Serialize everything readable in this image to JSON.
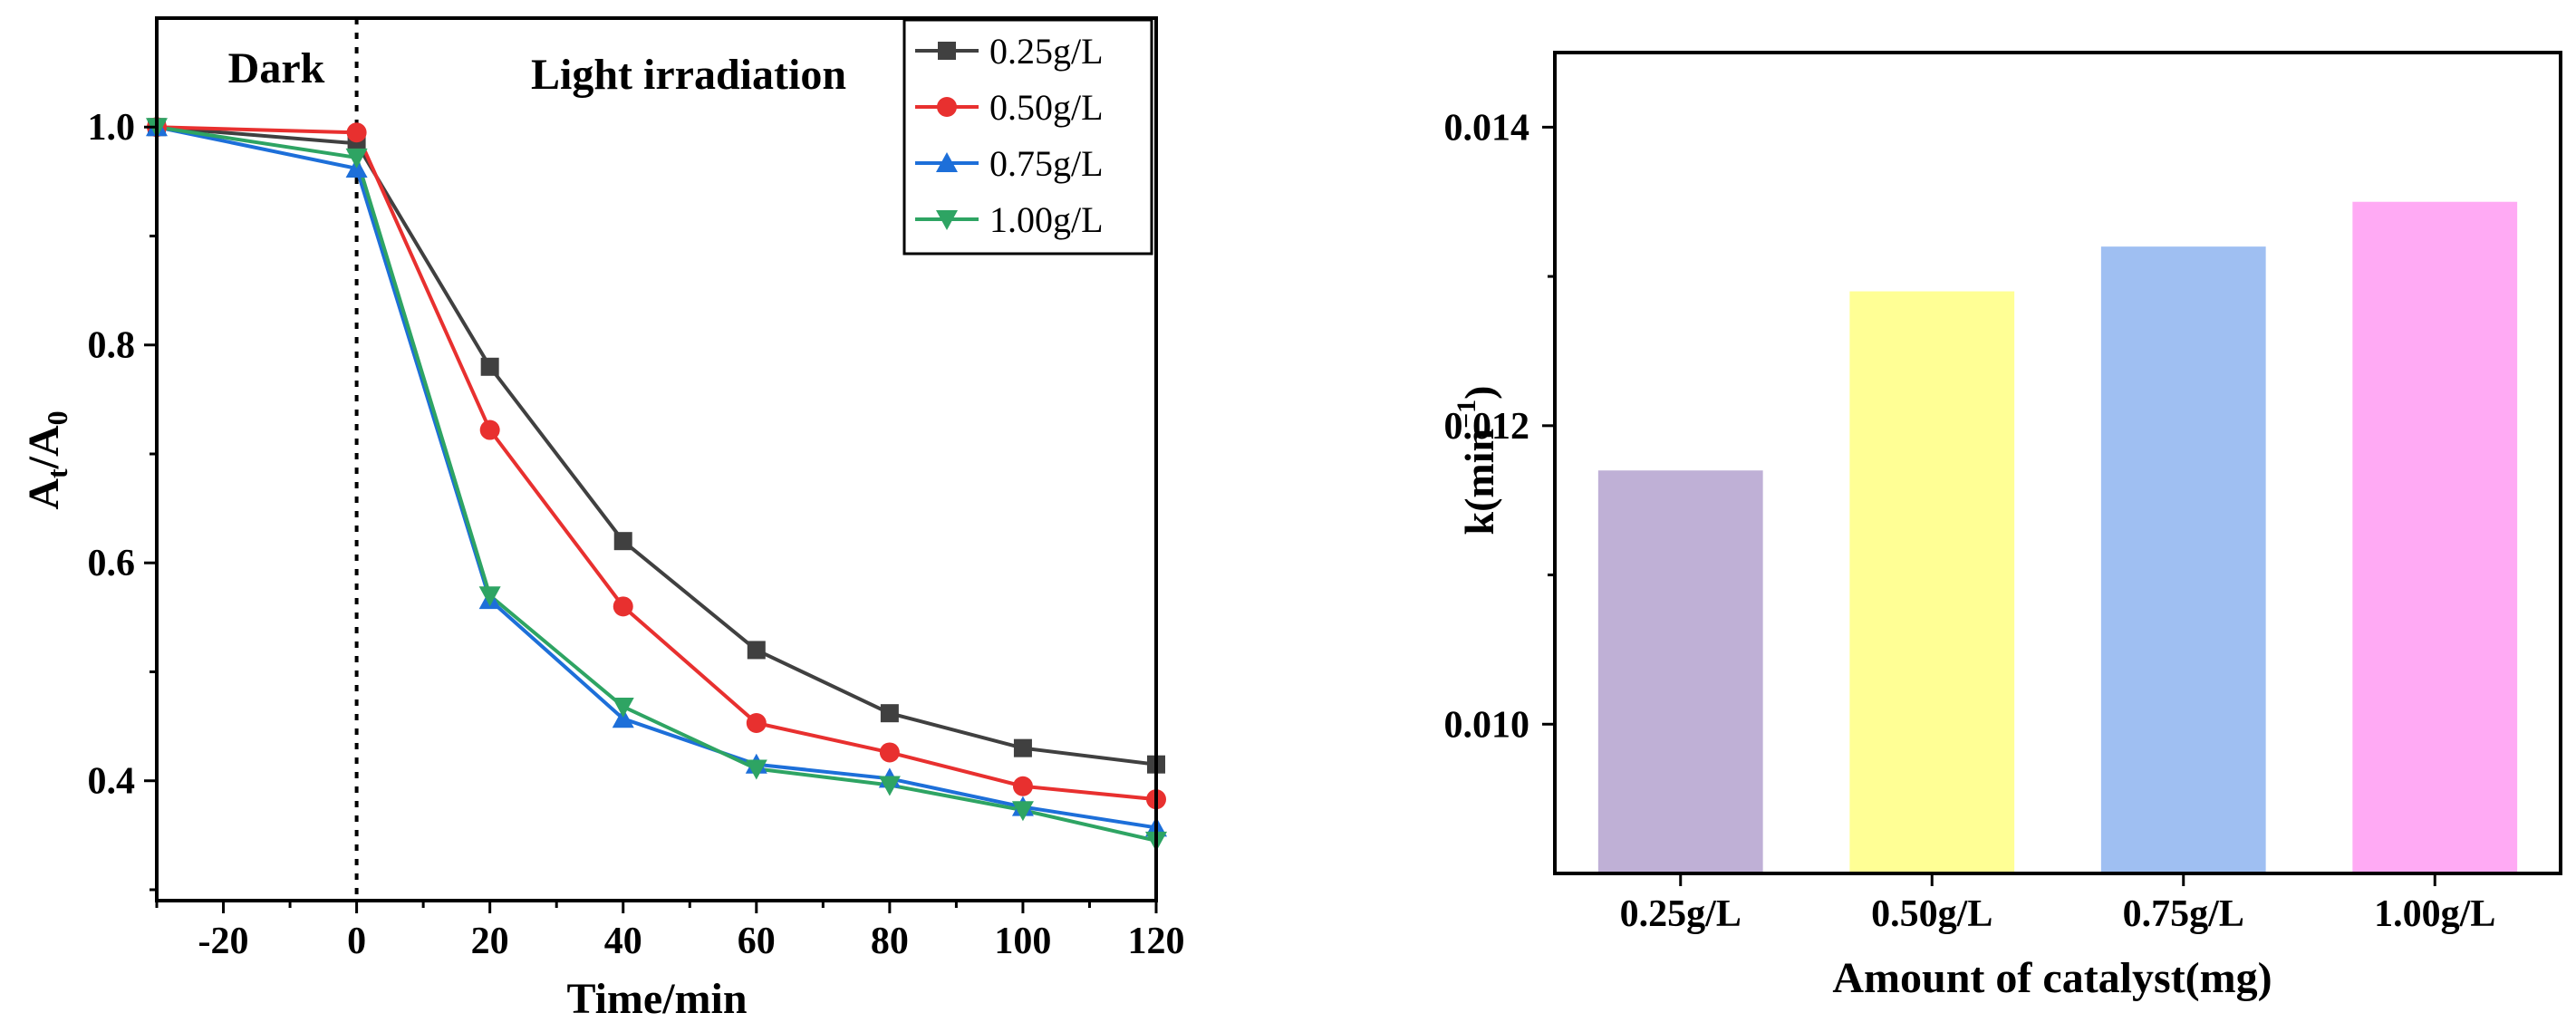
{
  "chart_data": [
    {
      "type": "line",
      "title": "",
      "xlabel": "Time/min",
      "ylabel_main": "A",
      "ylabel_sub1": "t",
      "ylabel_mid": "/A",
      "ylabel_sub2": "0",
      "xlim": [
        -30,
        120
      ],
      "ylim": [
        0.29,
        1.1
      ],
      "xticks": [
        -20,
        0,
        20,
        40,
        60,
        80,
        100,
        120
      ],
      "xtick_labels": [
        "-20",
        "0",
        "20",
        "40",
        "60",
        "80",
        "100",
        "120"
      ],
      "yticks": [
        0.4,
        0.6,
        0.8,
        1.0
      ],
      "ytick_labels": [
        "0.4",
        "0.6",
        "0.8",
        "1.0"
      ],
      "annotations": {
        "dark": "Dark",
        "light": "Light irradiation"
      },
      "divider_x": 0,
      "legend_position": "top-right",
      "x": [
        -30,
        0,
        20,
        40,
        60,
        80,
        100,
        120
      ],
      "series": [
        {
          "name": "0.25g/L",
          "color": "#404040",
          "marker": "square",
          "values": [
            1.0,
            0.985,
            0.78,
            0.62,
            0.52,
            0.462,
            0.43,
            0.415
          ]
        },
        {
          "name": "0.50g/L",
          "color": "#e8302f",
          "marker": "circle",
          "values": [
            1.0,
            0.995,
            0.722,
            0.56,
            0.453,
            0.426,
            0.395,
            0.383
          ]
        },
        {
          "name": "0.75g/L",
          "color": "#1d6fd9",
          "marker": "triangle-up",
          "values": [
            1.0,
            0.962,
            0.566,
            0.457,
            0.415,
            0.402,
            0.376,
            0.357
          ]
        },
        {
          "name": "1.00g/L",
          "color": "#2ea463",
          "marker": "triangle-down",
          "values": [
            1.0,
            0.972,
            0.57,
            0.468,
            0.411,
            0.396,
            0.373,
            0.345
          ]
        }
      ]
    },
    {
      "type": "bar",
      "title": "",
      "xlabel": "Amount of catalyst(mg)",
      "ylabel_main": "k(min",
      "ylabel_sup": "−1",
      "ylabel_end": ")",
      "categories": [
        "0.25g/L",
        "0.50g/L",
        "0.75g/L",
        "1.00g/L"
      ],
      "values": [
        0.0117,
        0.0129,
        0.0132,
        0.0135
      ],
      "colors": [
        "#bfb0d6",
        "#ffff95",
        "#9fbff2",
        "#ffaaf4"
      ],
      "ylim": [
        0.009,
        0.0145
      ],
      "yticks": [
        0.01,
        0.012,
        0.014
      ],
      "ytick_labels": [
        "0.010",
        "0.012",
        "0.014"
      ]
    }
  ]
}
